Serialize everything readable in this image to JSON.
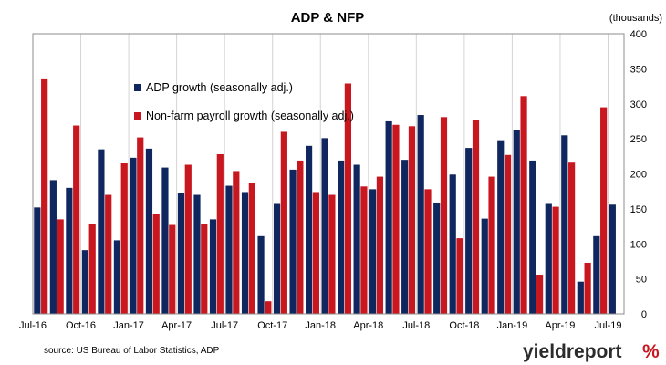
{
  "chart_data": {
    "type": "bar",
    "title": "ADP & NFP",
    "units": "(thousands)",
    "ylim": [
      0,
      400
    ],
    "y_ticks": [
      0,
      50,
      100,
      150,
      200,
      250,
      300,
      350,
      400
    ],
    "y_axis_side": "right",
    "grid": "vertical",
    "legend_position": "upper-left",
    "x": [
      "Jul-16",
      "Aug-16",
      "Sep-16",
      "Oct-16",
      "Nov-16",
      "Dec-16",
      "Jan-17",
      "Feb-17",
      "Mar-17",
      "Apr-17",
      "May-17",
      "Jun-17",
      "Jul-17",
      "Aug-17",
      "Sep-17",
      "Oct-17",
      "Nov-17",
      "Dec-17",
      "Jan-18",
      "Feb-18",
      "Mar-18",
      "Apr-18",
      "May-18",
      "Jun-18",
      "Jul-18",
      "Aug-18",
      "Sep-18",
      "Oct-18",
      "Nov-18",
      "Dec-18",
      "Jan-19",
      "Feb-19",
      "Mar-19",
      "Apr-19",
      "May-19",
      "Jun-19",
      "Jul-19"
    ],
    "x_tick_labels": [
      "Jul-16",
      "Oct-16",
      "Jan-17",
      "Apr-17",
      "Jul-17",
      "Oct-17",
      "Jan-18",
      "Apr-18",
      "Jul-18",
      "Oct-18",
      "Jan-19",
      "Apr-19",
      "Jul-19"
    ],
    "series": [
      {
        "name": "ADP growth (seasonally adj.)",
        "color": "#10265e",
        "values": [
          152,
          191,
          180,
          91,
          235,
          105,
          223,
          236,
          209,
          173,
          170,
          135,
          183,
          174,
          111,
          157,
          206,
          240,
          251,
          219,
          213,
          178,
          275,
          220,
          284,
          159,
          199,
          237,
          136,
          248,
          262,
          219,
          157,
          255,
          46,
          111,
          156
        ]
      },
      {
        "name": "Non-farm payroll growth (seasonally adj.)",
        "color": "#c8171e",
        "values": [
          335,
          135,
          269,
          129,
          170,
          215,
          252,
          142,
          127,
          213,
          128,
          228,
          204,
          187,
          18,
          260,
          219,
          174,
          170,
          329,
          182,
          196,
          270,
          268,
          178,
          281,
          108,
          277,
          196,
          227,
          311,
          56,
          153,
          216,
          73,
          295,
          null
        ]
      }
    ]
  },
  "source_text": "source: US Bureau of Labor Statistics, ADP",
  "logo": {
    "part1": "yieldreport",
    "part2": "%"
  }
}
